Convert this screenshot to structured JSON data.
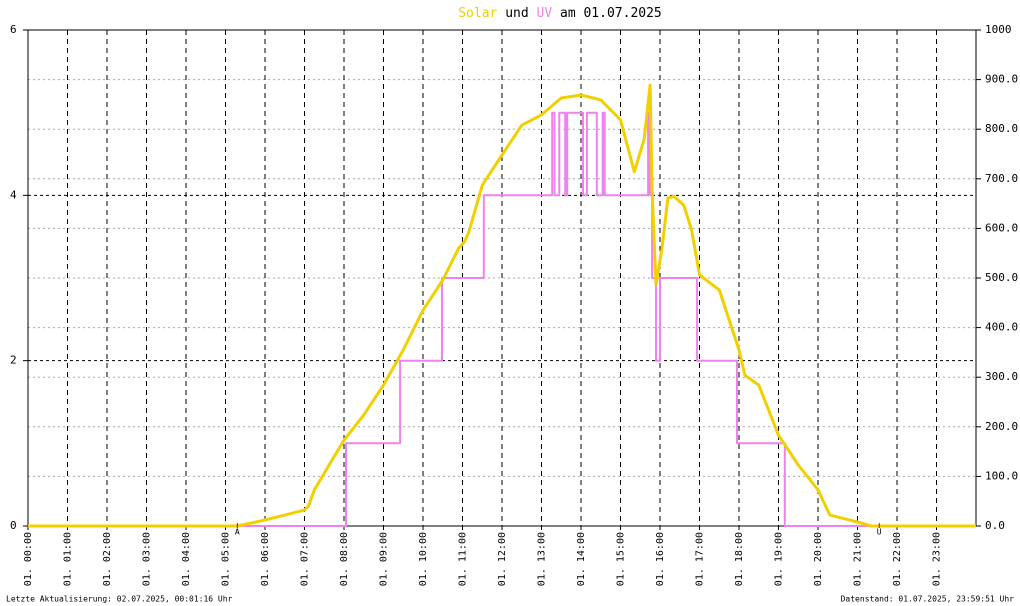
{
  "chart_data": {
    "type": "line",
    "title_parts": [
      "Solar",
      "und",
      "UV",
      "am 01.07.2025"
    ],
    "xlim": [
      0,
      24
    ],
    "xticks": [
      {
        "value": 0,
        "label": "01. 00:00"
      },
      {
        "value": 1,
        "label": "01. 01:00"
      },
      {
        "value": 2,
        "label": "01. 02:00"
      },
      {
        "value": 3,
        "label": "01. 03:00"
      },
      {
        "value": 4,
        "label": "01. 04:00"
      },
      {
        "value": 5,
        "label": "01. 05:00"
      },
      {
        "value": 6,
        "label": "01. 06:00"
      },
      {
        "value": 7,
        "label": "01. 07:00"
      },
      {
        "value": 8,
        "label": "01. 08:00"
      },
      {
        "value": 9,
        "label": "01. 09:00"
      },
      {
        "value": 10,
        "label": "01. 10:00"
      },
      {
        "value": 11,
        "label": "01. 11:00"
      },
      {
        "value": 12,
        "label": "01. 12:00"
      },
      {
        "value": 13,
        "label": "01. 13:00"
      },
      {
        "value": 14,
        "label": "01. 14:00"
      },
      {
        "value": 15,
        "label": "01. 15:00"
      },
      {
        "value": 16,
        "label": "01. 16:00"
      },
      {
        "value": 17,
        "label": "01. 17:00"
      },
      {
        "value": 18,
        "label": "01. 18:00"
      },
      {
        "value": 19,
        "label": "01. 19:00"
      },
      {
        "value": 20,
        "label": "01. 20:00"
      },
      {
        "value": 21,
        "label": "01. 21:00"
      },
      {
        "value": 22,
        "label": "01. 22:00"
      },
      {
        "value": 23,
        "label": "01. 23:00"
      }
    ],
    "ylim": [
      0,
      6
    ],
    "yticks": [
      0,
      2,
      4,
      6
    ],
    "y2lim": [
      0,
      1000
    ],
    "y2ticks": [
      {
        "value": 0,
        "label": "0.0"
      },
      {
        "value": 100,
        "label": "100.0"
      },
      {
        "value": 200,
        "label": "200.0"
      },
      {
        "value": 300,
        "label": "300.0"
      },
      {
        "value": 400,
        "label": "400.0"
      },
      {
        "value": 500,
        "label": "500.0"
      },
      {
        "value": 600,
        "label": "600.0"
      },
      {
        "value": 700,
        "label": "700.0"
      },
      {
        "value": 800,
        "label": "800.0"
      },
      {
        "value": 900,
        "label": "900.0"
      },
      1000
    ],
    "grid": true,
    "series": [
      {
        "name": "Solar",
        "color": "#f2d000",
        "axis": "y2",
        "x": [
          0,
          5.3,
          6,
          6.5,
          7,
          7.1,
          7.25,
          7.6,
          8,
          8.5,
          9,
          9.5,
          10,
          10.5,
          10.9,
          11.05,
          11.15,
          11.5,
          12,
          12.5,
          13,
          13.5,
          14,
          14.5,
          15,
          15.35,
          15.6,
          15.75,
          15.8,
          15.9,
          16.05,
          16.2,
          16.35,
          16.6,
          16.8,
          17,
          17.5,
          18,
          18.15,
          18.5,
          19,
          19.5,
          20,
          20.3,
          20.6,
          21,
          21.35,
          24
        ],
        "values": [
          0,
          0,
          12,
          22,
          32,
          40,
          73,
          120,
          173,
          224,
          284,
          355,
          435,
          496,
          560,
          573,
          590,
          687,
          748,
          808,
          829,
          863,
          869,
          859,
          819,
          714,
          780,
          889,
          677,
          486,
          560,
          661,
          665,
          647,
          597,
          506,
          476,
          355,
          304,
          284,
          183,
          123,
          73,
          22,
          16,
          8,
          0,
          0
        ]
      },
      {
        "name": "UV",
        "color": "#ee82ee",
        "axis": "y",
        "x": [
          0,
          8.05,
          8.05,
          9.42,
          9.42,
          10.48,
          10.48,
          11.54,
          11.54,
          13.27,
          13.27,
          13.33,
          13.33,
          13.45,
          13.45,
          13.6,
          13.6,
          13.65,
          13.65,
          14.05,
          14.05,
          14.15,
          14.15,
          14.4,
          14.4,
          14.55,
          14.55,
          14.6,
          14.6,
          15.7,
          15.7,
          15.75,
          15.75,
          15.8,
          15.8,
          15.9,
          15.9,
          16.0,
          16.0,
          16.94,
          16.94,
          17.95,
          17.95,
          19.16,
          19.16,
          24
        ],
        "values": [
          0,
          0,
          1,
          1,
          2,
          2,
          3,
          3,
          4,
          4,
          5,
          5,
          4,
          4,
          5,
          5,
          4,
          4,
          5,
          5,
          4,
          4,
          5,
          5,
          4,
          4,
          5,
          5,
          4,
          4,
          5,
          5,
          4,
          4,
          3,
          3,
          2,
          2,
          3,
          3,
          2,
          2,
          1,
          1,
          0,
          0
        ]
      }
    ],
    "annotations": [
      {
        "x": 5.3,
        "text": "A"
      },
      {
        "x": 21.55,
        "text": "U"
      }
    ],
    "annotation_color": "#cc0000",
    "footer_left": "Letzte Aktualisierung: 02.07.2025, 00:01:16 Uhr",
    "footer_right": "Datenstand: 01.07.2025, 23:59:51 Uhr"
  }
}
